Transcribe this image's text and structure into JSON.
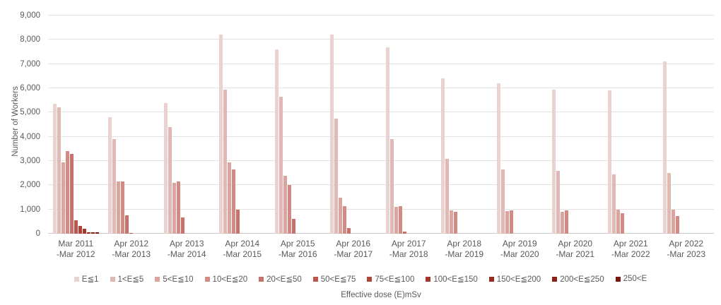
{
  "chart_data": {
    "type": "bar",
    "title": "",
    "xlabel": "Effective dose (E)mSv",
    "ylabel": "Number of Workers",
    "ylim": [
      0,
      9000
    ],
    "ytick_step": 1000,
    "ytick_labels": [
      "0",
      "1,000",
      "2,000",
      "3,000",
      "4,000",
      "5,000",
      "6,000",
      "7,000",
      "8,000",
      "9,000"
    ],
    "grid": true,
    "legend_position": "bottom",
    "categories": [
      {
        "line1": "Mar 2011",
        "line2": "-Mar 2012"
      },
      {
        "line1": "Apr 2012",
        "line2": "-Mar 2013"
      },
      {
        "line1": "Apr 2013",
        "line2": "-Mar 2014"
      },
      {
        "line1": "Apr 2014",
        "line2": "-Mar 2015"
      },
      {
        "line1": "Apr 2015",
        "line2": "-Mar 2016"
      },
      {
        "line1": "Apr 2016",
        "line2": "-Mar 2017"
      },
      {
        "line1": "Apr 2017",
        "line2": "-Mar 2018"
      },
      {
        "line1": "Apr 2018",
        "line2": "-Mar 2019"
      },
      {
        "line1": "Apr 2019",
        "line2": "-Mar 2020"
      },
      {
        "line1": "Apr 2020",
        "line2": "-Mar 2021"
      },
      {
        "line1": "Apr 2021",
        "line2": "-Mar 2022"
      },
      {
        "line1": "Apr 2022",
        "line2": "-Mar 2023"
      }
    ],
    "series": [
      {
        "name": "E≦1",
        "color": "#e9d2d0",
        "values": [
          5350,
          4800,
          5400,
          8200,
          7600,
          8200,
          7700,
          6400,
          6200,
          5950,
          5900,
          7100
        ]
      },
      {
        "name": "1<E≦5",
        "color": "#e2b8b4",
        "values": [
          5200,
          3900,
          4400,
          5950,
          5650,
          4750,
          3900,
          3100,
          2650,
          2580,
          2450,
          2500
        ]
      },
      {
        "name": "5<E≦10",
        "color": "#dba49e",
        "values": [
          2950,
          2150,
          2100,
          2950,
          2380,
          1500,
          1100,
          950,
          930,
          910,
          1000,
          1000
        ]
      },
      {
        "name": "10<E≦20",
        "color": "#d28b84",
        "values": [
          3400,
          2150,
          2150,
          2650,
          2000,
          1150,
          1150,
          900,
          950,
          950,
          850,
          720
        ]
      },
      {
        "name": "20<E≦50",
        "color": "#c8716a",
        "values": [
          3300,
          750,
          670,
          1000,
          600,
          230,
          100,
          0,
          0,
          0,
          0,
          0
        ]
      },
      {
        "name": "50<E≦75",
        "color": "#bc564d",
        "values": [
          550,
          30,
          0,
          0,
          0,
          0,
          0,
          0,
          0,
          0,
          0,
          0
        ]
      },
      {
        "name": "75<E≦100",
        "color": "#b04339",
        "values": [
          320,
          0,
          0,
          0,
          0,
          0,
          0,
          0,
          0,
          0,
          0,
          0
        ]
      },
      {
        "name": "100<E≦150",
        "color": "#a5362c",
        "values": [
          210,
          0,
          0,
          0,
          0,
          0,
          0,
          0,
          0,
          0,
          0,
          0
        ]
      },
      {
        "name": "150<E≦200",
        "color": "#982a20",
        "values": [
          70,
          0,
          0,
          0,
          0,
          0,
          0,
          0,
          0,
          0,
          0,
          0
        ]
      },
      {
        "name": "200<E≦250",
        "color": "#8b2017",
        "values": [
          50,
          0,
          0,
          0,
          0,
          0,
          0,
          0,
          0,
          0,
          0,
          0
        ]
      },
      {
        "name": "250<E",
        "color": "#7c170f",
        "values": [
          60,
          0,
          0,
          0,
          0,
          0,
          0,
          0,
          0,
          0,
          0,
          0
        ]
      }
    ],
    "colors": {
      "axis_text": "#595959",
      "gridline": "#e2e2e2",
      "axis_line": "#c9c9c9",
      "background": "#ffffff"
    }
  }
}
